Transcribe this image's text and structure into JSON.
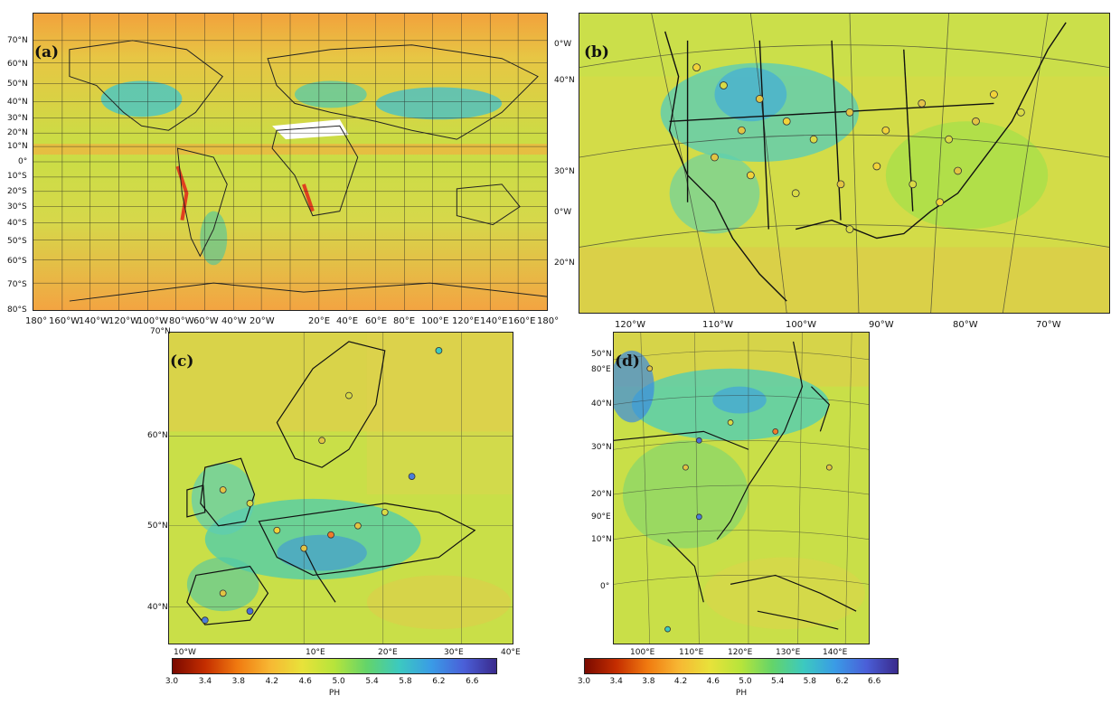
{
  "panels": {
    "a": {
      "tag": "(a)",
      "lat_labels": [
        "70°N",
        "60°N",
        "50°N",
        "40°N",
        "30°N",
        "20°N",
        "10°N",
        "0°",
        "10°S",
        "20°S",
        "30°S",
        "40°S",
        "50°S",
        "60°S",
        "70°S",
        "80°S"
      ],
      "lon_labels": [
        "180°",
        "160°W",
        "140°W",
        "120°W",
        "100°W",
        "80°W",
        "60°W",
        "40°W",
        "20°W",
        "20°E",
        "40°E",
        "60°E",
        "80°E",
        "100°E",
        "120°E",
        "140°E",
        "160°E",
        "180°"
      ]
    },
    "b": {
      "tag": "(b)",
      "left_labels": [
        "0°W",
        "40°N",
        "30°N",
        "0°W",
        "20°N"
      ],
      "lon_labels": [
        "120°W",
        "110°W",
        "100°W",
        "90°W",
        "80°W",
        "70°W"
      ]
    },
    "c": {
      "tag": "(c)",
      "lat_labels": [
        "70°N",
        "60°N",
        "50°N",
        "40°N"
      ],
      "lon_labels": [
        "10°W",
        "10°E",
        "20°E",
        "30°E",
        "40°E"
      ]
    },
    "d": {
      "tag": "(d)",
      "left_labels": [
        "50°N",
        "80°E",
        "40°N",
        "30°N",
        "20°N",
        "90°E",
        "10°N",
        "0°"
      ],
      "lon_labels": [
        "100°E",
        "110°E",
        "120°E",
        "130°E",
        "140°E"
      ]
    }
  },
  "colorbar": {
    "ticks": [
      "3.0",
      "3.4",
      "3.8",
      "4.2",
      "4.6",
      "5.0",
      "5.4",
      "5.8",
      "6.2",
      "6.6"
    ],
    "range": [
      3.0,
      6.9
    ],
    "label": "PH",
    "stops": [
      "#7a0a00",
      "#c42d00",
      "#f07a10",
      "#f7b733",
      "#e8e23a",
      "#b6e43b",
      "#63d46a",
      "#3cc9c0",
      "#3a9be6",
      "#4a5fd8",
      "#3a2a8c"
    ]
  }
}
